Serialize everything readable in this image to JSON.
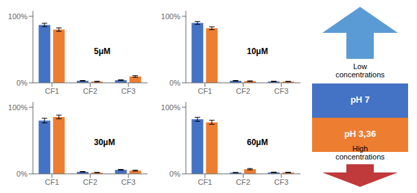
{
  "chart_data": [
    {
      "type": "bar",
      "annotation": "5μM",
      "categories": [
        "CF1",
        "CF2",
        "CF3"
      ],
      "series": [
        {
          "name": "pH 7",
          "color": "#4472C4",
          "values": [
            0.87,
            0.03,
            0.04
          ],
          "errors": [
            0.025,
            0.005,
            0.005
          ]
        },
        {
          "name": "pH 3,36",
          "color": "#ED7D31",
          "values": [
            0.8,
            0.018,
            0.095
          ],
          "errors": [
            0.025,
            0.005,
            0.012
          ]
        }
      ],
      "ylim": [
        0,
        1.08
      ],
      "yticks": [
        {
          "value": 0,
          "label": "0%"
        },
        {
          "value": 1.0,
          "label": "100%"
        }
      ],
      "grid": false
    },
    {
      "type": "bar",
      "annotation": "10μM",
      "categories": [
        "CF1",
        "CF2",
        "CF3"
      ],
      "series": [
        {
          "name": "pH 7",
          "color": "#4472C4",
          "values": [
            0.9,
            0.03,
            0.02
          ],
          "errors": [
            0.022,
            0.005,
            0.004
          ]
        },
        {
          "name": "pH 3,36",
          "color": "#ED7D31",
          "values": [
            0.82,
            0.025,
            0.018
          ],
          "errors": [
            0.022,
            0.005,
            0.004
          ]
        }
      ],
      "ylim": [
        0,
        1.08
      ],
      "yticks": [
        {
          "value": 0,
          "label": "0%"
        },
        {
          "value": 1.0,
          "label": "100%"
        }
      ],
      "grid": false
    },
    {
      "type": "bar",
      "annotation": "30μM",
      "categories": [
        "CF1",
        "CF2",
        "CF3"
      ],
      "series": [
        {
          "name": "pH 7",
          "color": "#4472C4",
          "values": [
            0.8,
            0.03,
            0.06
          ],
          "errors": [
            0.035,
            0.005,
            0.007
          ]
        },
        {
          "name": "pH 3,36",
          "color": "#ED7D31",
          "values": [
            0.855,
            0.018,
            0.048
          ],
          "errors": [
            0.028,
            0.004,
            0.007
          ]
        }
      ],
      "ylim": [
        0,
        1.08
      ],
      "yticks": [
        {
          "value": 0,
          "label": "0%"
        },
        {
          "value": 1.0,
          "label": "100%"
        }
      ],
      "grid": false
    },
    {
      "type": "bar",
      "annotation": "60μM",
      "categories": [
        "CF1",
        "CF2",
        "CF3"
      ],
      "series": [
        {
          "name": "pH 7",
          "color": "#4472C4",
          "values": [
            0.82,
            0.018,
            0.022
          ],
          "errors": [
            0.03,
            0.004,
            0.004
          ]
        },
        {
          "name": "pH 3,36",
          "color": "#ED7D31",
          "values": [
            0.775,
            0.07,
            0.02
          ],
          "errors": [
            0.03,
            0.01,
            0.004
          ]
        }
      ],
      "ylim": [
        0,
        1.08
      ],
      "yticks": [
        {
          "value": 0,
          "label": "0%"
        },
        {
          "value": 1.0,
          "label": "100%"
        }
      ],
      "grid": false
    }
  ],
  "legend": "right",
  "annotations": [
    {
      "text": "Low\nconcentrations",
      "color": "#5B9BD5"
    },
    {
      "text": "High\nconcentrations",
      "color": "#C0393B"
    }
  ]
}
